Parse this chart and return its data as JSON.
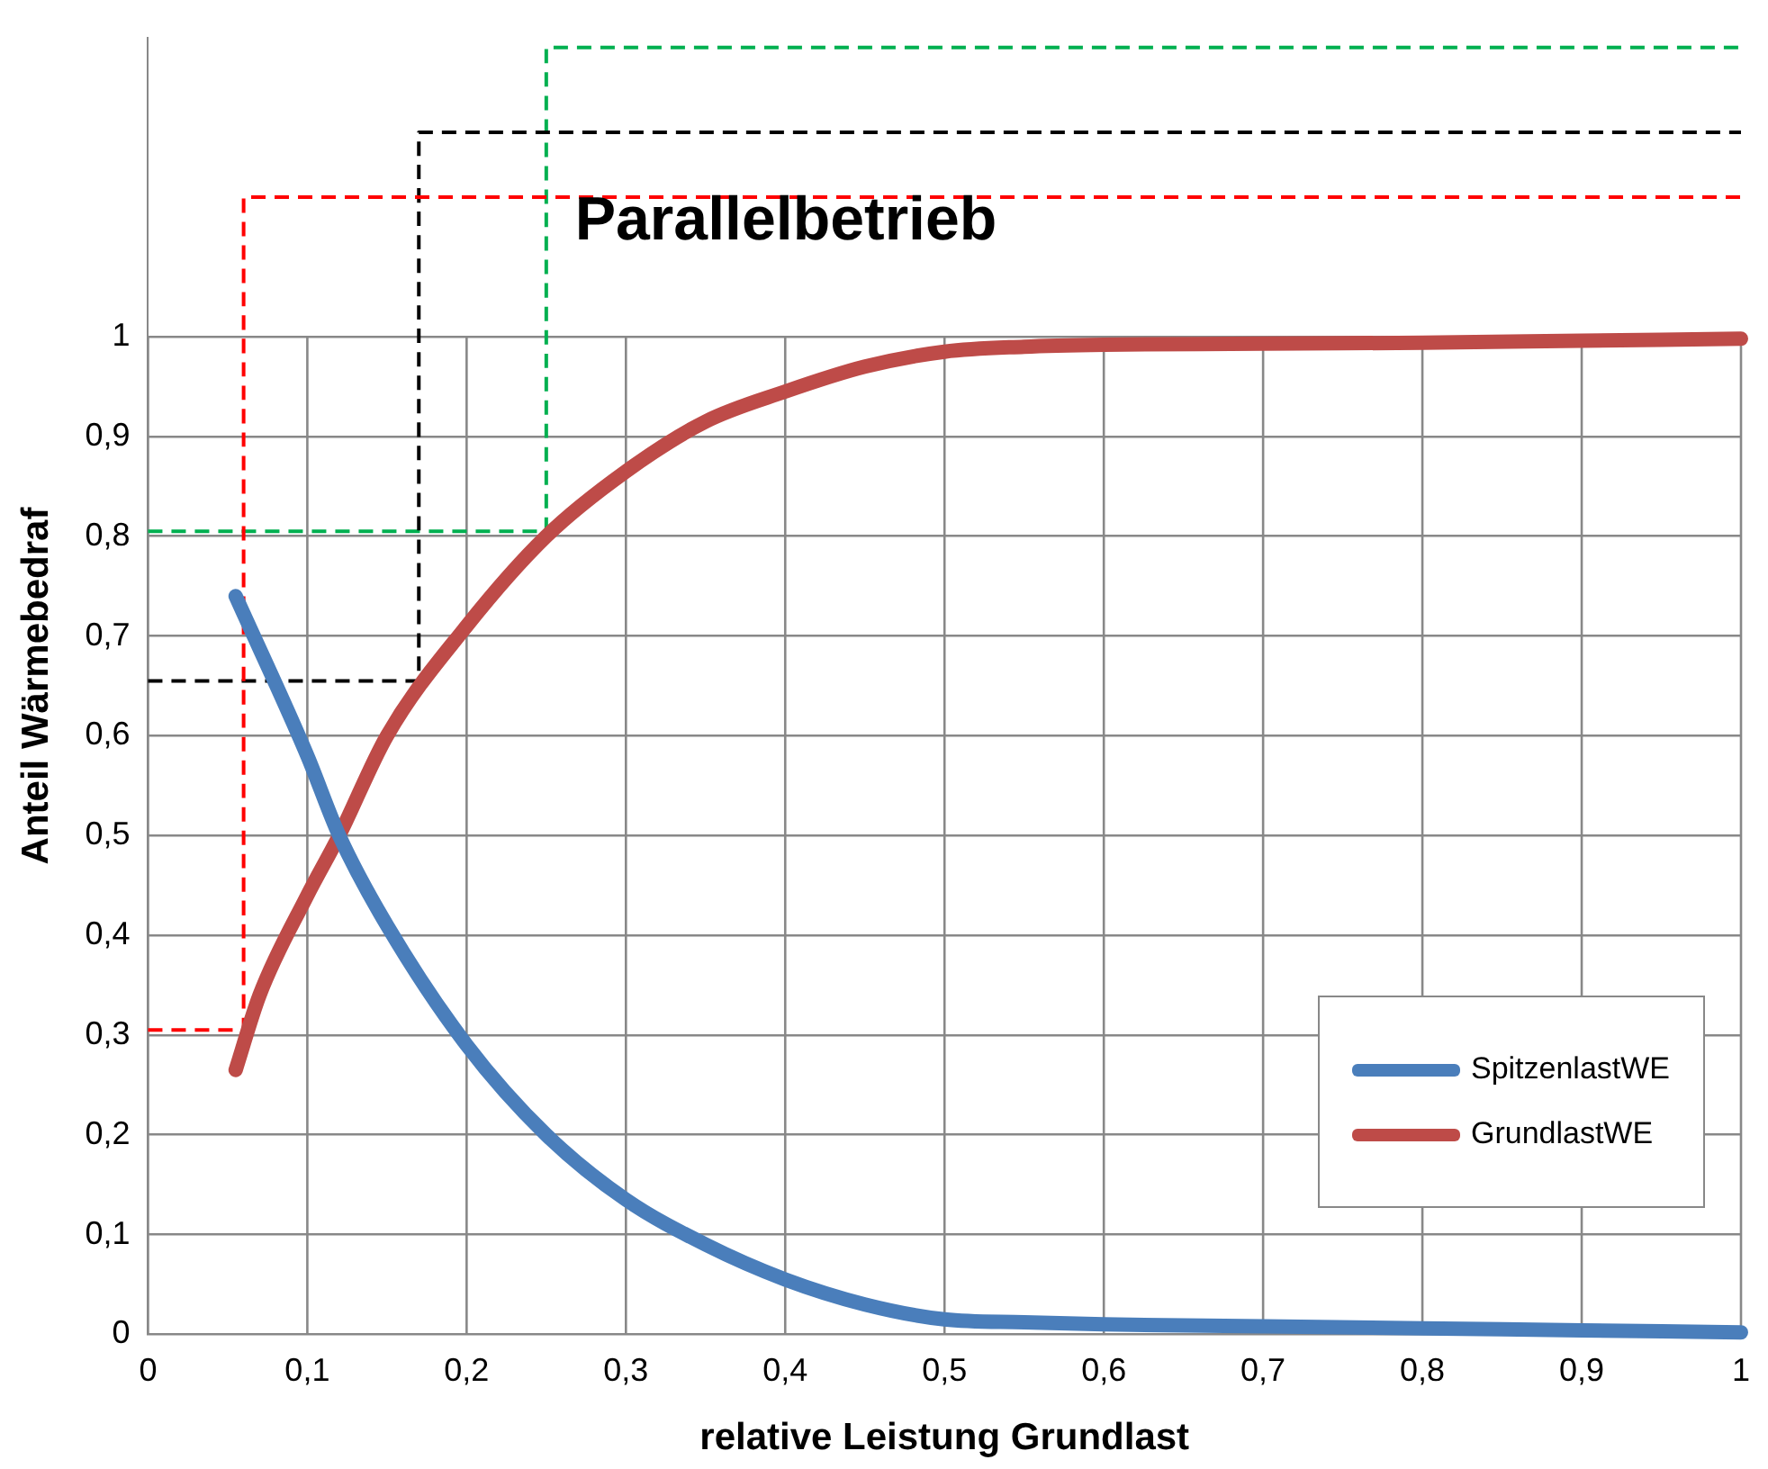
{
  "chart_data": {
    "type": "line",
    "xlabel": "relative Leistung Grundlast",
    "ylabel": "Anteil Wärmebedraf",
    "annotations": [
      "Parallelbetrieb"
    ],
    "xlim": [
      0,
      1
    ],
    "ylim": [
      0,
      1.3
    ],
    "xticks": [
      0,
      {
        "value": 0.1,
        "label": "0,1"
      },
      {
        "value": 0.2,
        "label": "0,2"
      },
      {
        "value": 0.3,
        "label": "0,3"
      },
      {
        "value": 0.4,
        "label": "0,4"
      },
      {
        "value": 0.5,
        "label": "0,5"
      },
      {
        "value": 0.6,
        "label": "0,6"
      },
      {
        "value": 0.7,
        "label": "0,7"
      },
      {
        "value": 0.8,
        "label": "0,8"
      },
      {
        "value": 0.9,
        "label": "0,9"
      },
      1
    ],
    "yticks": [
      0,
      {
        "value": 0.1,
        "label": "0,1"
      },
      {
        "value": 0.2,
        "label": "0,2"
      },
      {
        "value": 0.3,
        "label": "0,3"
      },
      {
        "value": 0.4,
        "label": "0,4"
      },
      {
        "value": 0.5,
        "label": "0,5"
      },
      {
        "value": 0.6,
        "label": "0,6"
      },
      {
        "value": 0.7,
        "label": "0,7"
      },
      {
        "value": 0.8,
        "label": "0,8"
      },
      {
        "value": 0.9,
        "label": "0,9"
      },
      1
    ],
    "grid": true,
    "legend": "bottom right",
    "marker": "none",
    "series": [
      {
        "name": "SpitzenlastWE",
        "color": "#4a7ebb",
        "line_style": "solid",
        "x": [
          0.055,
          0.1,
          0.12,
          0.15,
          0.2,
          0.25,
          0.3,
          0.35,
          0.4,
          0.45,
          0.5,
          0.55,
          0.6,
          0.7,
          0.8,
          0.9,
          1
        ],
        "values": [
          0.74,
          0.58,
          0.5,
          0.41,
          0.29,
          0.2,
          0.135,
          0.09,
          0.055,
          0.03,
          0.015,
          0.012,
          0.01,
          0.008,
          0.006,
          0.004,
          0.002
        ]
      },
      {
        "name": "GrundlastWE",
        "color": "#be4b48",
        "line_style": "solid",
        "x": [
          0.055,
          0.07,
          0.1,
          0.12,
          0.15,
          0.2,
          0.25,
          0.3,
          0.35,
          0.4,
          0.45,
          0.5,
          0.55,
          0.6,
          0.7,
          0.8,
          0.9,
          1
        ],
        "values": [
          0.265,
          0.34,
          0.44,
          0.5,
          0.6,
          0.71,
          0.8,
          0.865,
          0.915,
          0.945,
          0.97,
          0.985,
          0.99,
          0.992,
          0.993,
          0.994,
          0.996,
          0.998
        ]
      },
      {
        "color": "#ff0000",
        "line_style": "dashed",
        "x": [
          0,
          0.06,
          0.06,
          1
        ],
        "values": [
          0.305,
          0.305,
          1.14,
          1.14
        ]
      },
      {
        "color": "#000000",
        "line_style": "dashed",
        "x": [
          0,
          0.17,
          0.17,
          1
        ],
        "values": [
          0.655,
          0.655,
          1.205,
          1.205
        ]
      },
      {
        "color": "#00b050",
        "line_style": "dashed",
        "x": [
          0,
          0.25,
          0.25,
          1
        ],
        "values": [
          0.805,
          0.805,
          1.29,
          1.29
        ]
      }
    ]
  }
}
